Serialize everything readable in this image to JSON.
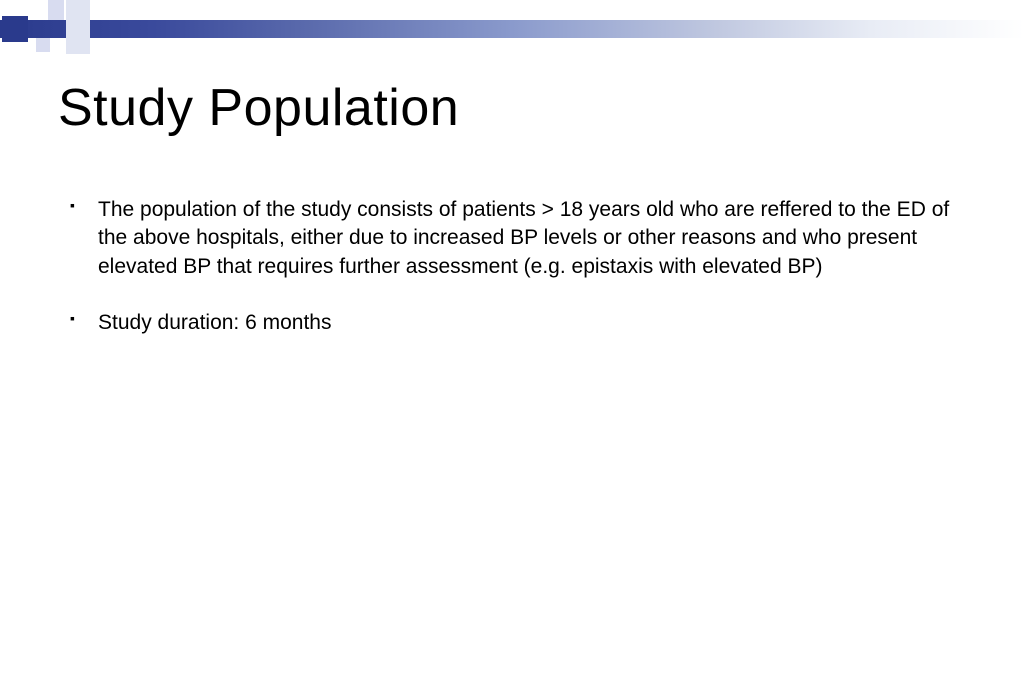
{
  "slide": {
    "title": "Study Population",
    "bullets": [
      "The population of the study consists of patients > 18 years old who are reffered to the ED of the above hospitals, either due to increased BP levels or other reasons and who present elevated BP that requires further assessment (e.g. epistaxis with elevated BP)",
      "Study duration: 6 months"
    ]
  },
  "theme": {
    "accent_color": "#2a3a8c",
    "accent_light": "#c8d0e8",
    "background": "#ffffff",
    "text_color": "#000000",
    "title_fontsize": 52,
    "body_fontsize": 21
  }
}
